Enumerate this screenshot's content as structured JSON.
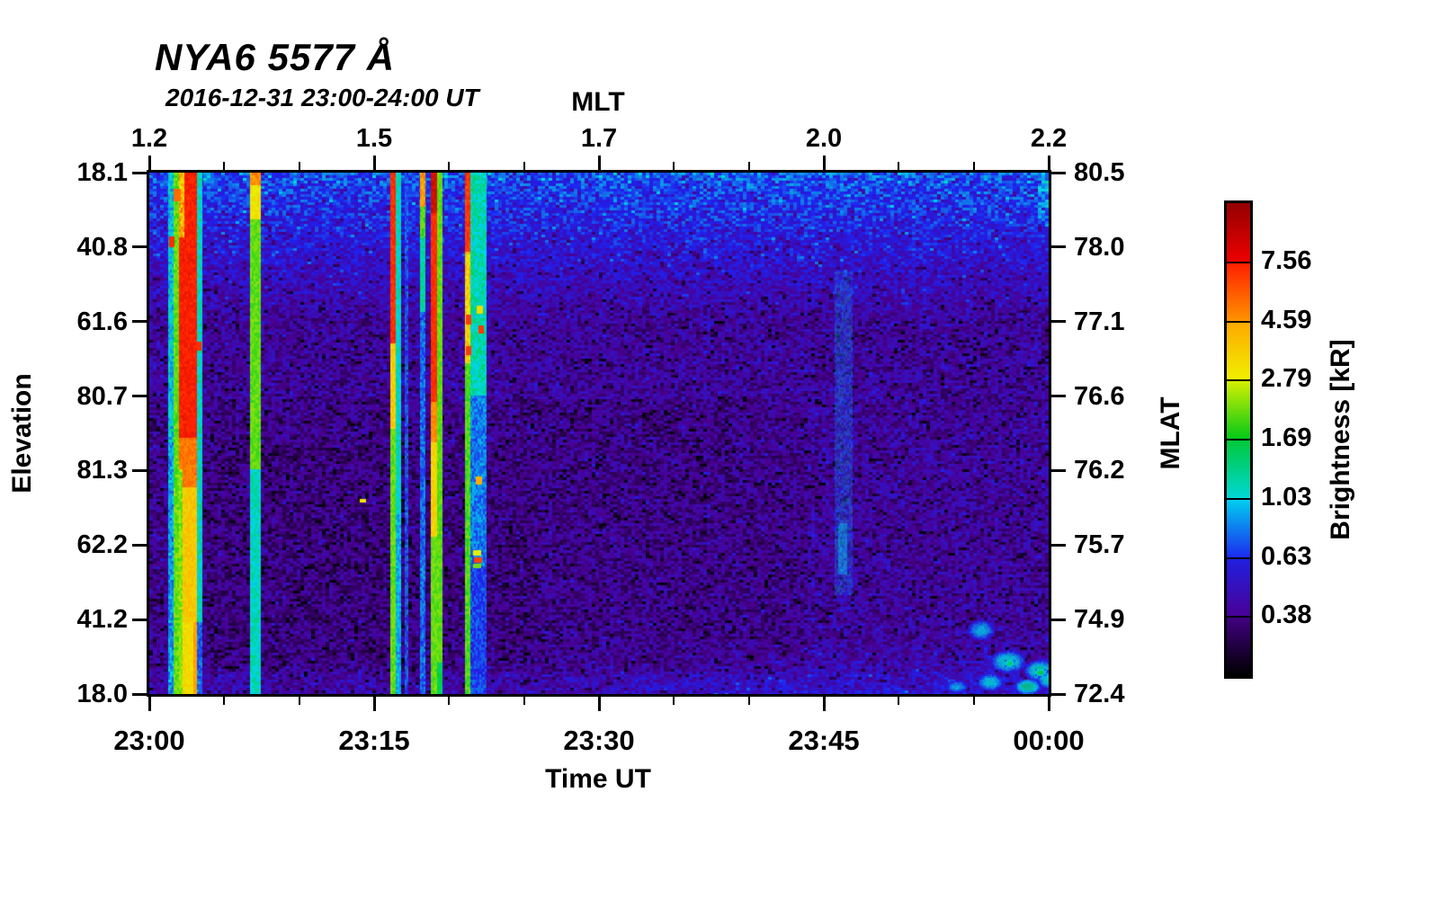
{
  "chart_data": {
    "type": "heatmap",
    "title": "NYA6 5577 Å",
    "subtitle": "2016-12-31 23:00-24:00 UT",
    "xlabel_bottom": "Time UT",
    "xlabel_top": "MLT",
    "ylabel_left": "Elevation",
    "ylabel_right": "MLAT",
    "colorbar_label": "Brightness [kR]",
    "x_ticks_bottom": [
      "23:00",
      "23:15",
      "23:30",
      "23:45",
      "00:00"
    ],
    "x_ticks_top": [
      "1.2",
      "1.5",
      "1.7",
      "2.0",
      "2.2"
    ],
    "y_ticks_left": [
      "18.1",
      "40.8",
      "61.6",
      "80.7",
      "81.3",
      "62.2",
      "41.2",
      "18.0"
    ],
    "y_ticks_right": [
      "80.5",
      "78.0",
      "77.1",
      "76.6",
      "76.2",
      "75.7",
      "74.9",
      "72.4"
    ],
    "x_range_minutes": 60,
    "minor_tick_interval_minutes": 5,
    "colorbar_ticks": [
      "7.56",
      "4.59",
      "2.79",
      "1.69",
      "1.03",
      "0.63",
      "0.38"
    ],
    "colorbar_segments": [
      [
        "#950000",
        "#ee0000"
      ],
      [
        "#ff1e00",
        "#ff9400"
      ],
      [
        "#ffa800",
        "#f0f000"
      ],
      [
        "#d8f000",
        "#00c818"
      ],
      [
        "#00c838",
        "#00d8d8"
      ],
      [
        "#00d0f0",
        "#1c28f0"
      ],
      [
        "#2020e0",
        "#4a0096"
      ],
      [
        "#420082",
        "#000000"
      ]
    ],
    "colormap_stops": [
      [
        0.0,
        "#000002"
      ],
      [
        0.125,
        "#4a0092"
      ],
      [
        0.25,
        "#2020ee"
      ],
      [
        0.375,
        "#00d8e8"
      ],
      [
        0.5,
        "#00d020"
      ],
      [
        0.625,
        "#eef000"
      ],
      [
        0.75,
        "#ffa000"
      ],
      [
        0.875,
        "#ff1e00"
      ],
      [
        1.0,
        "#950000"
      ]
    ],
    "background": {
      "top_value": 0.285,
      "mid_value": 0.14,
      "noise": 0.12
    },
    "features": {
      "stripes": [
        {
          "x": [
            21,
            27
          ],
          "segments": [
            [
              0,
              300,
              0.37,
              0.12
            ],
            [
              300,
              580,
              0.33,
              0.1
            ]
          ]
        },
        {
          "x": [
            27,
            33
          ],
          "segments": [
            [
              0,
              580,
              0.55,
              0.07
            ]
          ]
        },
        {
          "x": [
            33,
            53
          ],
          "segments": [
            [
              0,
              295,
              0.88,
              0.05
            ],
            [
              295,
              350,
              0.79,
              0.05
            ],
            [
              350,
              500,
              0.69,
              0.05
            ],
            [
              500,
              580,
              0.66,
              0.04
            ]
          ]
        },
        {
          "x": [
            33,
            37
          ],
          "segments": [
            [
              330,
              580,
              0.57,
              0.06
            ]
          ]
        },
        {
          "x": [
            33,
            38
          ],
          "segments": [
            [
              0,
              70,
              0.72,
              0.18
            ]
          ]
        },
        {
          "x": [
            49,
            54
          ],
          "segments": [
            [
              500,
              580,
              0.75,
              0.05
            ]
          ]
        },
        {
          "x": [
            53,
            59
          ],
          "segments": [
            [
              0,
              500,
              0.4,
              0.08
            ],
            [
              500,
              580,
              0.3,
              0.08
            ]
          ]
        },
        {
          "x": [
            112,
            124
          ],
          "segments": [
            [
              0,
              14,
              0.77,
              0.07
            ],
            [
              14,
              52,
              0.64,
              0.06
            ],
            [
              52,
              330,
              0.55,
              0.05
            ],
            [
              330,
              580,
              0.4,
              0.08
            ]
          ]
        },
        {
          "x": [
            268,
            274
          ],
          "segments": [
            [
              0,
              190,
              0.86,
              0.05
            ],
            [
              190,
              285,
              0.68,
              0.06
            ],
            [
              285,
              580,
              0.55,
              0.05
            ]
          ]
        },
        {
          "x": [
            274,
            280
          ],
          "segments": [
            [
              0,
              380,
              0.4,
              0.08
            ],
            [
              380,
              580,
              0.35,
              0.08
            ]
          ]
        },
        {
          "x": [
            284,
            288
          ],
          "alpha": 0.85,
          "segments": [
            [
              0,
              580,
              0.29,
              0.09
            ]
          ]
        },
        {
          "x": [
            301,
            307
          ],
          "segments": [
            [
              0,
              38,
              0.75,
              0.09
            ],
            [
              38,
              72,
              0.54,
              0.07
            ],
            [
              72,
              155,
              0.42,
              0.07
            ],
            [
              155,
              580,
              0.3,
              0.09
            ]
          ]
        },
        {
          "x": [
            313,
            320
          ],
          "segments": [
            [
              0,
              45,
              0.93,
              0.05
            ],
            [
              45,
              255,
              0.86,
              0.04
            ],
            [
              255,
              300,
              0.77,
              0.05
            ],
            [
              300,
              405,
              0.67,
              0.05
            ],
            [
              405,
              580,
              0.55,
              0.05
            ]
          ]
        },
        {
          "x": [
            320,
            326
          ],
          "segments": [
            [
              0,
              545,
              0.55,
              0.05
            ],
            [
              545,
              580,
              0.47,
              0.06
            ]
          ]
        },
        {
          "x": [
            351,
            357
          ],
          "segments": [
            [
              0,
              88,
              0.85,
              0.06
            ],
            [
              88,
              212,
              0.68,
              0.14
            ],
            [
              212,
              580,
              0.54,
              0.06
            ]
          ]
        },
        {
          "x": [
            357,
            374
          ],
          "segments": [
            [
              0,
              248,
              0.41,
              0.1
            ],
            [
              248,
              438,
              0.31,
              0.09
            ],
            [
              438,
              580,
              0.27,
              0.08
            ]
          ]
        },
        {
          "x": [
            762,
            782
          ],
          "alpha": 0.4,
          "segments": [
            [
              110,
              470,
              0.3,
              0.1
            ]
          ]
        },
        {
          "x": [
            766,
            776
          ],
          "alpha": 0.5,
          "segments": [
            [
              390,
              445,
              0.35,
              0.08
            ]
          ]
        }
      ],
      "flecks": [
        [
          27,
          18,
          8,
          14,
          0.8
        ],
        [
          22,
          71,
          6,
          12,
          0.86
        ],
        [
          44,
          272,
          8,
          10,
          0.87
        ],
        [
          53,
          188,
          5,
          10,
          0.86
        ],
        [
          352,
          158,
          6,
          11,
          0.85
        ],
        [
          352,
          193,
          6,
          10,
          0.85
        ],
        [
          364,
          148,
          7,
          9,
          0.66
        ],
        [
          366,
          170,
          6,
          9,
          0.85
        ],
        [
          363,
          338,
          7,
          9,
          0.73
        ],
        [
          360,
          420,
          9,
          6,
          0.62
        ],
        [
          361,
          428,
          9,
          6,
          0.84
        ],
        [
          360,
          435,
          9,
          5,
          0.56
        ],
        [
          234,
          363,
          7,
          4,
          0.64
        ]
      ],
      "blobs": [
        [
          924,
          508,
          16,
          12,
          0.37
        ],
        [
          954,
          543,
          20,
          13,
          0.41
        ],
        [
          989,
          553,
          17,
          12,
          0.43
        ],
        [
          934,
          566,
          15,
          10,
          0.4
        ],
        [
          897,
          571,
          13,
          8,
          0.36
        ],
        [
          976,
          571,
          15,
          9,
          0.45
        ],
        [
          998,
          563,
          12,
          10,
          0.41
        ],
        [
          990,
          555,
          7,
          5,
          0.5
        ],
        [
          956,
          545,
          7,
          5,
          0.47
        ]
      ]
    }
  }
}
